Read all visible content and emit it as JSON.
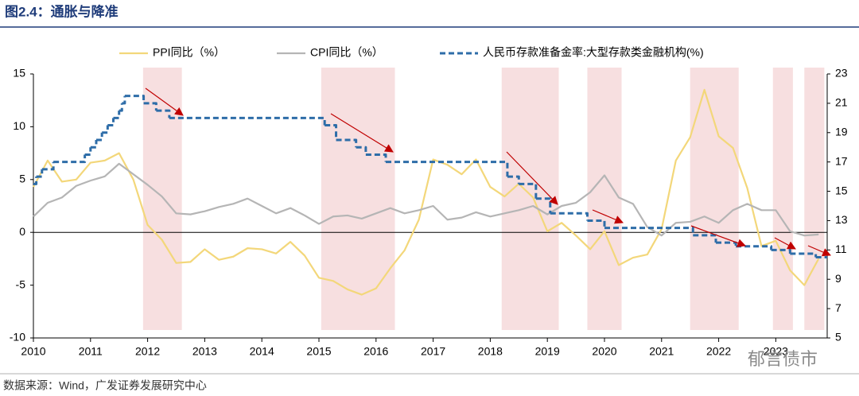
{
  "chart_data": {
    "type": "line",
    "title": "图2.4：通胀与降准",
    "source": "数据来源：Wind，广发证券发展研究中心",
    "watermark": "郁言债市",
    "xlim": [
      2010,
      2023.9
    ],
    "xticks": [
      2010,
      2011,
      2012,
      2013,
      2014,
      2015,
      2016,
      2017,
      2018,
      2019,
      2020,
      2021,
      2022,
      2023
    ],
    "ylim": [
      -10,
      15
    ],
    "yticks": [
      -10,
      -5,
      0,
      5,
      10,
      15
    ],
    "y2lim": [
      5,
      23
    ],
    "y2ticks": [
      5,
      7,
      9,
      11,
      13,
      15,
      17,
      19,
      21,
      23
    ],
    "x": [
      2010,
      2010.25,
      2010.5,
      2010.75,
      2011,
      2011.25,
      2011.5,
      2011.75,
      2012,
      2012.25,
      2012.5,
      2012.75,
      2013,
      2013.25,
      2013.5,
      2013.75,
      2014,
      2014.25,
      2014.5,
      2014.75,
      2015,
      2015.25,
      2015.5,
      2015.75,
      2016,
      2016.25,
      2016.5,
      2016.75,
      2017,
      2017.25,
      2017.5,
      2017.75,
      2018,
      2018.25,
      2018.5,
      2018.75,
      2019,
      2019.25,
      2019.5,
      2019.75,
      2020,
      2020.25,
      2020.5,
      2020.75,
      2021,
      2021.25,
      2021.5,
      2021.75,
      2022,
      2022.25,
      2022.5,
      2022.75,
      2023,
      2023.25,
      2023.5,
      2023.75
    ],
    "series": [
      {
        "name": "PPI同比（%）",
        "color": "#f3d77a",
        "values": [
          4.3,
          6.8,
          4.8,
          5.0,
          6.6,
          6.8,
          7.5,
          5.0,
          0.7,
          -0.7,
          -2.9,
          -2.8,
          -1.6,
          -2.6,
          -2.3,
          -1.5,
          -1.6,
          -2.0,
          -0.9,
          -2.2,
          -4.3,
          -4.6,
          -5.4,
          -5.9,
          -5.3,
          -3.4,
          -1.7,
          1.2,
          6.9,
          6.4,
          5.5,
          6.9,
          4.3,
          3.4,
          4.6,
          3.3,
          0.1,
          0.9,
          -0.3,
          -1.6,
          0.1,
          -3.1,
          -2.4,
          -2.1,
          0.3,
          6.8,
          9.0,
          13.5,
          9.1,
          8.0,
          4.2,
          -1.3,
          -0.8,
          -3.6,
          -5.0,
          -2.5
        ]
      },
      {
        "name": "CPI同比（%）",
        "color": "#b5b5b5",
        "values": [
          1.5,
          2.8,
          3.3,
          4.4,
          4.9,
          5.3,
          6.5,
          5.5,
          4.5,
          3.4,
          1.8,
          1.7,
          2.0,
          2.4,
          2.7,
          3.2,
          2.5,
          1.8,
          2.3,
          1.6,
          0.8,
          1.5,
          1.6,
          1.3,
          1.8,
          2.3,
          1.8,
          2.1,
          2.5,
          1.2,
          1.4,
          1.9,
          1.5,
          1.8,
          2.1,
          2.5,
          1.7,
          2.5,
          2.8,
          3.8,
          5.4,
          3.3,
          2.7,
          0.5,
          -0.3,
          0.9,
          1.0,
          1.5,
          0.9,
          2.1,
          2.7,
          2.1,
          2.1,
          0.1,
          -0.3,
          -0.2
        ]
      },
      {
        "name": "人民币存款准备金率:大型存款类金融机构(%)",
        "color": "#2e6da8",
        "axis": "y2",
        "dash": true,
        "step": "post",
        "x": [
          2010.0,
          2010.05,
          2010.15,
          2010.35,
          2010.9,
          2011.0,
          2011.1,
          2011.2,
          2011.3,
          2011.4,
          2011.5,
          2011.55,
          2011.6,
          2011.93,
          2012.15,
          2012.38,
          2015.1,
          2015.3,
          2015.65,
          2015.82,
          2016.17,
          2018.3,
          2018.5,
          2018.8,
          2019.05,
          2019.7,
          2020.0,
          2021.55,
          2021.95,
          2022.3,
          2022.92,
          2023.25,
          2023.7
        ],
        "values": [
          15.5,
          16,
          16.5,
          17,
          17.5,
          18,
          18.5,
          19,
          19.5,
          20,
          20.5,
          21,
          21.5,
          21,
          20.5,
          20,
          19.5,
          18.5,
          18,
          17.5,
          17,
          16,
          15.5,
          14.5,
          13.5,
          13,
          12.5,
          12,
          11.5,
          11.25,
          11,
          10.75,
          10.5
        ]
      }
    ],
    "shaded": {
      "color": "#f7dfe0",
      "ranges": [
        [
          2011.92,
          2012.6
        ],
        [
          2015.04,
          2016.33
        ],
        [
          2018.2,
          2019.2
        ],
        [
          2019.7,
          2020.3
        ],
        [
          2021.5,
          2022.35
        ],
        [
          2022.95,
          2023.3
        ],
        [
          2023.5,
          2023.85
        ]
      ]
    }
  }
}
